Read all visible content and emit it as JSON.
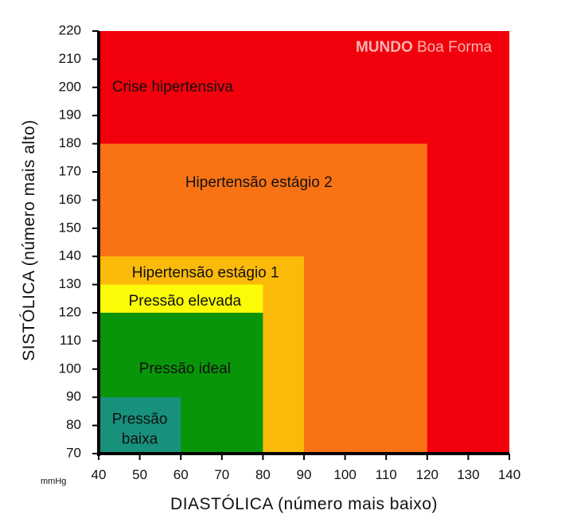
{
  "chart_data": {
    "type": "heatmap",
    "title": "",
    "xlabel": "DIASTÓLICA (número mais baixo)",
    "ylabel": "SISTÓLICA (número mais alto)",
    "unit_label": "mmHg",
    "xlim": [
      40,
      140
    ],
    "ylim": [
      70,
      220
    ],
    "x_ticks": [
      40,
      50,
      60,
      70,
      80,
      90,
      100,
      110,
      120,
      130,
      140
    ],
    "y_ticks": [
      70,
      80,
      90,
      100,
      110,
      120,
      130,
      140,
      150,
      160,
      170,
      180,
      190,
      200,
      210,
      220
    ],
    "grid": false,
    "zones": [
      {
        "name": "crise",
        "label_lines": [
          "Crise hipertensiva"
        ],
        "x_max": 140,
        "y_max": 220,
        "color": "#f2000c",
        "label_pos": [
          58,
          200
        ]
      },
      {
        "name": "hipertensao-2",
        "label_lines": [
          "Hipertensão estágio 2"
        ],
        "x_max": 120,
        "y_max": 180,
        "color": "#f97315",
        "label_pos": [
          79,
          166
        ]
      },
      {
        "name": "hipertensao-1",
        "label_lines": [
          "Hipertensão estágio 1"
        ],
        "x_max": 90,
        "y_max": 140,
        "color": "#fbba0a",
        "label_pos": [
          66,
          134
        ]
      },
      {
        "name": "elevada",
        "label_lines": [
          "Pressão elevada"
        ],
        "x_max": 80,
        "y_max": 130,
        "color": "#fbfb07",
        "label_pos": [
          61,
          124
        ]
      },
      {
        "name": "ideal",
        "label_lines": [
          "Pressão ideal"
        ],
        "x_max": 80,
        "y_max": 120,
        "color": "#099509",
        "label_pos": [
          61,
          100
        ]
      },
      {
        "name": "baixa",
        "label_lines": [
          "Pressão",
          "baixa"
        ],
        "x_max": 60,
        "y_max": 90,
        "color": "#17907c",
        "label_pos": [
          50,
          78.5
        ]
      }
    ],
    "watermark": {
      "bold": "MUNDO",
      "regular": " Boa Forma",
      "color": "#f7b4b0"
    }
  }
}
